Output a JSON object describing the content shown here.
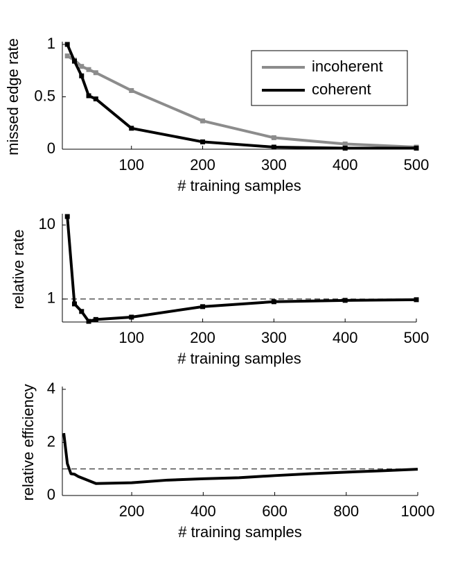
{
  "chart_data": [
    {
      "type": "line",
      "xlabel": "# training samples",
      "ylabel": "missed edge rate",
      "x": [
        10,
        20,
        30,
        40,
        50,
        100,
        200,
        300,
        400,
        500
      ],
      "series": [
        {
          "name": "incoherent",
          "color": "#8c8c8c",
          "values": [
            0.89,
            0.85,
            0.79,
            0.76,
            0.73,
            0.56,
            0.27,
            0.11,
            0.05,
            0.02
          ]
        },
        {
          "name": "coherent",
          "color": "#000000",
          "values": [
            1.0,
            0.84,
            0.7,
            0.51,
            0.48,
            0.2,
            0.07,
            0.02,
            0.01,
            0.01
          ]
        }
      ],
      "xlim": [
        3,
        500
      ],
      "ylim": [
        0,
        1
      ],
      "xticks": [
        100,
        200,
        300,
        400,
        500
      ],
      "yticks": [
        0,
        0.5,
        1
      ],
      "markers": true,
      "legend": "upper right"
    },
    {
      "type": "line",
      "xlabel": "# training samples",
      "ylabel": "relative rate",
      "x": [
        10,
        20,
        30,
        40,
        50,
        100,
        200,
        300,
        400,
        500
      ],
      "series": [
        {
          "color": "#000000",
          "values": [
            13,
            0.86,
            0.68,
            0.5,
            0.53,
            0.57,
            0.79,
            0.92,
            0.96,
            0.98
          ]
        }
      ],
      "xlim": [
        3,
        500
      ],
      "ylim": [
        0.49,
        13
      ],
      "log_y": true,
      "xticks": [
        100,
        200,
        300,
        400,
        500
      ],
      "yticks": [
        1,
        10
      ],
      "markers": true,
      "reference_line": 1
    },
    {
      "type": "line",
      "xlabel": "# training samples",
      "ylabel": "relative efficiency",
      "x": [
        10,
        20,
        30,
        40,
        50,
        100,
        200,
        300,
        400,
        500,
        600,
        700,
        800,
        900,
        1000
      ],
      "series": [
        {
          "color": "#000000",
          "values": [
            2.35,
            1.2,
            0.82,
            0.8,
            0.72,
            0.45,
            0.48,
            0.58,
            0.63,
            0.67,
            0.75,
            0.82,
            0.88,
            0.93,
            0.99
          ]
        }
      ],
      "xlim": [
        6,
        1000
      ],
      "ylim": [
        0,
        4
      ],
      "xticks": [
        200,
        400,
        600,
        800,
        1000
      ],
      "yticks": [
        0,
        2,
        4
      ],
      "reference_line": 1
    }
  ]
}
